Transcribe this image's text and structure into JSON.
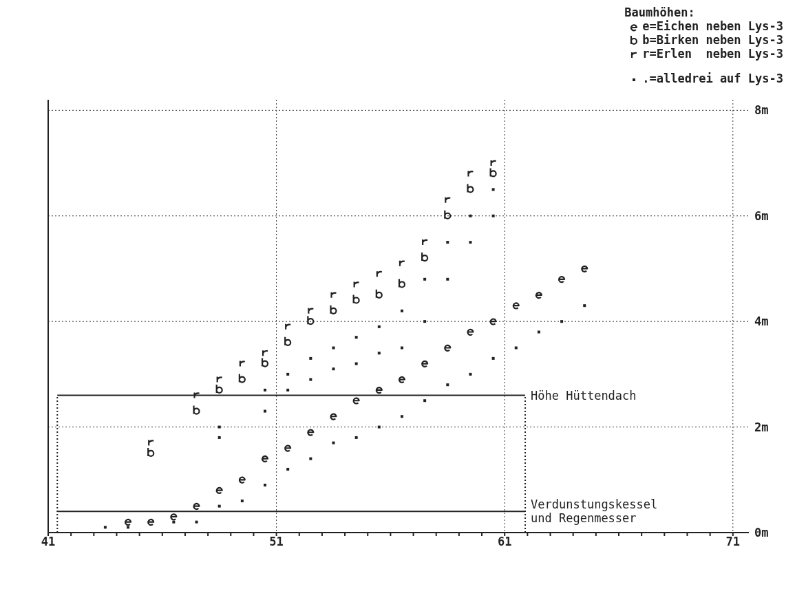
{
  "chart_data": {
    "type": "scatter",
    "legend_title": "Baumhöhen:",
    "legend": "top right",
    "grid": true,
    "xlim": [
      41,
      71.7
    ],
    "ylim": [
      0,
      8.2
    ],
    "xticks": [
      41,
      {
        "value": 42,
        "label": null
      },
      {
        "value": 43,
        "label": null
      },
      {
        "value": 44,
        "label": null
      },
      {
        "value": 45,
        "label": null
      },
      {
        "value": 46,
        "label": null
      },
      {
        "value": 47,
        "label": null
      },
      {
        "value": 48,
        "label": null
      },
      {
        "value": 49,
        "label": null
      },
      {
        "value": 50,
        "label": null
      },
      51,
      {
        "value": 52,
        "label": null
      },
      {
        "value": 53,
        "label": null
      },
      {
        "value": 54,
        "label": null
      },
      {
        "value": 55,
        "label": null
      },
      {
        "value": 56,
        "label": null
      },
      {
        "value": 57,
        "label": null
      },
      {
        "value": 58,
        "label": null
      },
      {
        "value": 59,
        "label": null
      },
      {
        "value": 60,
        "label": null
      },
      61,
      {
        "value": 62,
        "label": null
      },
      {
        "value": 63,
        "label": null
      },
      {
        "value": 64,
        "label": null
      },
      {
        "value": 65,
        "label": null
      },
      {
        "value": 66,
        "label": null
      },
      {
        "value": 67,
        "label": null
      },
      {
        "value": 68,
        "label": null
      },
      {
        "value": 69,
        "label": null
      },
      {
        "value": 70,
        "label": null
      },
      71
    ],
    "yticks": [
      {
        "value": 0,
        "label": "0m"
      },
      {
        "value": 2,
        "label": "2m"
      },
      {
        "value": 4,
        "label": "4m"
      },
      {
        "value": 6,
        "label": "6m"
      },
      {
        "value": 8,
        "label": "8m"
      }
    ],
    "series": [
      {
        "name": "e=Eichen neben Lys-3",
        "color": "#222222",
        "x": [
          44.5,
          45.5,
          46.5,
          47.5,
          48.5,
          49.5,
          50.5,
          51.5,
          52.5,
          53.5,
          54.5,
          55.5,
          56.5,
          57.5,
          58.5,
          59.5,
          60.5,
          61.5,
          62.5,
          63.5,
          64.5
        ],
        "values": [
          0.2,
          0.2,
          0.3,
          0.5,
          0.8,
          1.0,
          1.4,
          1.6,
          1.9,
          2.2,
          2.5,
          2.7,
          2.9,
          3.2,
          3.5,
          3.8,
          4.0,
          4.3,
          4.5,
          4.8,
          5.0
        ]
      },
      {
        "name": "b=Birken neben Lys-3",
        "color": "#222222",
        "x": [
          45.5,
          47.5,
          48.5,
          49.5,
          50.5,
          51.5,
          52.5,
          53.5,
          54.5,
          55.5,
          56.5,
          57.5,
          58.5,
          59.5,
          60.5
        ],
        "values": [
          1.5,
          2.3,
          2.7,
          2.9,
          3.2,
          3.6,
          4.0,
          4.2,
          4.4,
          4.5,
          4.7,
          5.2,
          6.0,
          6.5,
          6.8
        ]
      },
      {
        "name": "r=Erlen  neben Lys-3",
        "color": "#222222",
        "x": [
          45.5,
          47.5,
          48.5,
          49.5,
          50.5,
          51.5,
          52.5,
          53.5,
          54.5,
          55.5,
          56.5,
          57.5,
          58.5,
          59.5,
          60.5
        ],
        "values": [
          1.7,
          2.6,
          2.9,
          3.2,
          3.4,
          3.9,
          4.2,
          4.5,
          4.7,
          4.9,
          5.1,
          5.5,
          6.3,
          6.8,
          7.0
        ]
      },
      {
        "name": ".=alledrei auf Lys-3",
        "color": "#222222",
        "marker": "square",
        "x": [
          43.5,
          44.5,
          46.5,
          47.5,
          48.5,
          48.5,
          48.5,
          49.5,
          50.5,
          50.5,
          50.5,
          51.5,
          51.5,
          51.5,
          52.5,
          52.5,
          52.5,
          53.5,
          53.5,
          53.5,
          54.5,
          54.5,
          54.5,
          55.5,
          55.5,
          55.5,
          56.5,
          56.5,
          56.5,
          57.5,
          57.5,
          57.5,
          58.5,
          58.5,
          58.5,
          59.5,
          59.5,
          59.5,
          60.5,
          60.5,
          60.5,
          61.5,
          62.5,
          63.5,
          64.5
        ],
        "values": [
          0.1,
          0.1,
          0.2,
          0.2,
          0.5,
          1.8,
          2.0,
          0.6,
          0.9,
          2.3,
          2.7,
          1.2,
          2.7,
          3.0,
          1.4,
          2.9,
          3.3,
          1.7,
          3.1,
          3.5,
          1.8,
          3.2,
          3.7,
          2.0,
          3.4,
          3.9,
          2.2,
          3.5,
          4.2,
          2.5,
          4.0,
          4.8,
          2.8,
          4.8,
          5.5,
          3.0,
          5.5,
          6.0,
          3.3,
          6.0,
          6.5,
          3.5,
          3.8,
          4.0,
          4.3
        ]
      }
    ],
    "ref_lines": [
      {
        "axis": "y",
        "value": 2.6,
        "label": "Höhe Hüttendach",
        "line_style": "solid"
      },
      {
        "axis": "y",
        "value": 0.4,
        "label": "Verdunstungskessel\nund Regenmesser",
        "line_style": "solid"
      },
      {
        "axis": "x",
        "value": 41.4,
        "line_style": "dotted"
      },
      {
        "axis": "x",
        "value": 61.9,
        "line_style": "dotted"
      }
    ]
  }
}
